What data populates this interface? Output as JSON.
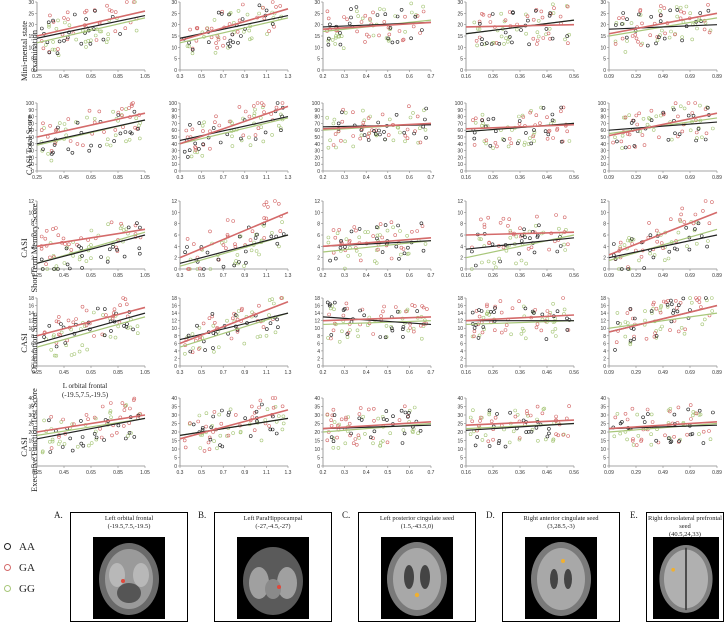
{
  "row_labels": [
    [
      "Mini-mental state",
      "examination"
    ],
    [
      "CASI Total Score"
    ],
    [
      "CASI",
      "ShortTerm Memory Score"
    ],
    [
      "CASI",
      "Orientation Score"
    ],
    [
      "CASI",
      "Executive Function Test Score"
    ]
  ],
  "x_annotation": [
    "L orbital frontal",
    "(-19.5,7.5,-19.5)"
  ],
  "legend": [
    {
      "label": "AA",
      "color": "#222222"
    },
    {
      "label": "GA",
      "color": "#d46a6a"
    },
    {
      "label": "GG",
      "color": "#a8c77a"
    }
  ],
  "brain_panels": [
    {
      "letter": "A.",
      "caption": [
        "Left orbital frontal",
        "(-19.5,7.5,-19.5)"
      ]
    },
    {
      "letter": "B.",
      "caption": [
        "Left ParaHippocampal",
        "(-27,-4.5,-27)"
      ]
    },
    {
      "letter": "C.",
      "caption": [
        "Left posterior cingulate seed",
        "(1.5,-43.5,0)"
      ]
    },
    {
      "letter": "D.",
      "caption": [
        "Right anterior cingulate seed",
        "(3,28.5,-3)"
      ]
    },
    {
      "letter": "E.",
      "caption": [
        "Right dorsolateral prefrontal seed",
        "(40.5,24,33)"
      ]
    }
  ],
  "chart_data": {
    "type": "scatter",
    "series_colors": {
      "AA": "#222222",
      "GA": "#d46a6a",
      "GG": "#a8c77a"
    },
    "columns": [
      {
        "xlim": [
          0.25,
          1.05
        ],
        "xticks": [
          "0.25",
          "0.45",
          "0.65",
          "0.85",
          "1.05"
        ]
      },
      {
        "xlim": [
          0.3,
          1.3
        ],
        "xticks": [
          "0.3",
          "0.5",
          "0.7",
          "0.9",
          "1.1",
          "1.3"
        ]
      },
      {
        "xlim": [
          0.2,
          0.7
        ],
        "xticks": [
          "0.2",
          "0.3",
          "0.4",
          "0.5",
          "0.6",
          "0.7"
        ]
      },
      {
        "xlim": [
          0.16,
          0.56
        ],
        "xticks": [
          "0.16",
          "0.26",
          "0.36",
          "0.46",
          "0.56"
        ]
      },
      {
        "xlim": [
          0.09,
          0.89
        ],
        "xticks": [
          "0.09",
          "0.29",
          "0.49",
          "0.69",
          "0.89"
        ]
      }
    ],
    "rows": [
      {
        "ylim": [
          0,
          30
        ],
        "yticks": [
          "0",
          "5",
          "10",
          "15",
          "20",
          "25",
          "30"
        ],
        "trend": [
          {
            "AA": [
              14,
              24
            ],
            "GA": [
              15,
              26
            ],
            "GG": [
              12,
              23
            ]
          },
          {
            "AA": [
              14,
              24
            ],
            "GA": [
              13,
              27
            ],
            "GG": [
              12,
              23
            ]
          },
          {
            "AA": [
              19,
              21
            ],
            "GA": [
              18,
              21
            ],
            "GG": [
              17,
              22
            ]
          },
          {
            "AA": [
              16,
              22
            ],
            "GA": [
              19,
              20
            ],
            "GG": [
              16,
              22
            ]
          },
          {
            "AA": [
              18,
              20
            ],
            "GA": [
              16,
              25
            ],
            "GG": [
              15,
              23
            ]
          }
        ]
      },
      {
        "ylim": [
          0,
          100
        ],
        "yticks": [
          "0",
          "10",
          "20",
          "30",
          "40",
          "50",
          "60",
          "70",
          "80",
          "90",
          "100"
        ],
        "trend": [
          {
            "AA": [
              40,
              75
            ],
            "GA": [
              50,
              85
            ],
            "GG": [
              38,
              75
            ]
          },
          {
            "AA": [
              45,
              80
            ],
            "GA": [
              40,
              95
            ],
            "GG": [
              40,
              78
            ]
          },
          {
            "AA": [
              65,
              68
            ],
            "GA": [
              62,
              70
            ],
            "GG": [
              60,
              70
            ]
          },
          {
            "AA": [
              58,
              70
            ],
            "GA": [
              62,
              68
            ],
            "GG": [
              58,
              70
            ]
          },
          {
            "AA": [
              60,
              72
            ],
            "GA": [
              52,
              85
            ],
            "GG": [
              55,
              78
            ]
          }
        ]
      },
      {
        "ylim": [
          0,
          12
        ],
        "yticks": [
          "0",
          "2",
          "4",
          "6",
          "8",
          "10",
          "12"
        ],
        "trend": [
          {
            "AA": [
              1,
              6
            ],
            "GA": [
              4,
              7
            ],
            "GG": [
              1,
              6.5
            ]
          },
          {
            "AA": [
              1,
              6
            ],
            "GA": [
              2,
              10
            ],
            "GG": [
              0.5,
              6
            ]
          },
          {
            "AA": [
              4,
              5
            ],
            "GA": [
              4,
              5.5
            ],
            "GG": [
              3,
              5
            ]
          },
          {
            "AA": [
              3.5,
              5.5
            ],
            "GA": [
              6,
              6.5
            ],
            "GG": [
              2,
              6
            ]
          },
          {
            "AA": [
              2,
              6
            ],
            "GA": [
              2.5,
              10
            ],
            "GG": [
              1.5,
              7
            ]
          }
        ]
      },
      {
        "ylim": [
          0,
          18
        ],
        "yticks": [
          "0",
          "2",
          "4",
          "6",
          "8",
          "10",
          "12",
          "14",
          "16",
          "18"
        ],
        "trend": [
          {
            "AA": [
              6,
              14
            ],
            "GA": [
              8,
              15.5
            ],
            "GG": [
              5,
              13
            ]
          },
          {
            "AA": [
              7,
              14
            ],
            "GA": [
              6,
              17
            ],
            "GG": [
              5,
              14
            ]
          },
          {
            "AA": [
              13,
              11
            ],
            "GA": [
              12,
              13
            ],
            "GG": [
              11,
              12
            ]
          },
          {
            "AA": [
              12,
              12
            ],
            "GA": [
              12,
              13.5
            ],
            "GG": [
              11,
              12
            ]
          },
          {
            "AA": [
              9,
              16
            ],
            "GA": [
              9,
              16
            ],
            "GG": [
              10,
              14
            ]
          }
        ]
      },
      {
        "ylim": [
          0,
          40
        ],
        "yticks": [
          "0",
          "5",
          "10",
          "15",
          "20",
          "25",
          "30",
          "35",
          "40"
        ],
        "trend": [
          {
            "AA": [
              16,
              28
            ],
            "GA": [
              20,
              30
            ],
            "GG": [
              18,
              28
            ]
          },
          {
            "AA": [
              18,
              28
            ],
            "GA": [
              16,
              33
            ],
            "GG": [
              18,
              28
            ]
          },
          {
            "AA": [
              22,
              24
            ],
            "GA": [
              22,
              26
            ],
            "GG": [
              20,
              25
            ]
          },
          {
            "AA": [
              21,
              25
            ],
            "GA": [
              24,
              27
            ],
            "GG": [
              22,
              25
            ]
          },
          {
            "AA": [
              22,
              24
            ],
            "GA": [
              22,
              26
            ],
            "GG": [
              20,
              25
            ]
          }
        ]
      }
    ]
  }
}
